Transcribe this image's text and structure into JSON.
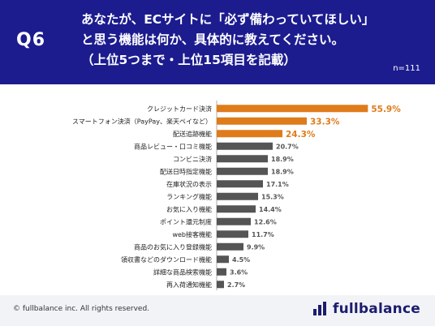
{
  "header": {
    "question_label": "Q6",
    "question_lines": [
      "あなたが、ECサイトに「必ず備わっていてほしい」",
      "と思う機能は何か、具体的に教えてください。",
      "（上位5つまで・上位15項目を記載）"
    ],
    "sample_size": "n=111"
  },
  "chart_data": {
    "type": "bar",
    "orientation": "horizontal",
    "categories": [
      "クレジットカード決済",
      "スマートフォン決済（PayPay、楽天ペイなど）",
      "配送追跡機能",
      "商品レビュー・口コミ機能",
      "コンビニ決済",
      "配送日時指定機能",
      "在庫状況の表示",
      "ランキング機能",
      "お気に入り機能",
      "ポイント還元制度",
      "web接客機能",
      "商品のお気に入り登録機能",
      "領収書などのダウンロード機能",
      "詳細な商品検索機能",
      "再入荷通知機能"
    ],
    "values": [
      55.9,
      33.3,
      24.3,
      20.7,
      18.9,
      18.9,
      17.1,
      15.3,
      14.4,
      12.6,
      11.7,
      9.9,
      4.5,
      3.6,
      2.7
    ],
    "data_labels": [
      "55.9%",
      "33.3%",
      "24.3%",
      "20.7%",
      "18.9%",
      "18.9%",
      "17.1%",
      "15.3%",
      "14.4%",
      "12.6%",
      "11.7%",
      "9.9%",
      "4.5%",
      "3.6%",
      "2.7%"
    ],
    "highlight_top": 3,
    "colors": {
      "highlight": "#e07b1a",
      "default": "#555555"
    },
    "xlim": [
      0,
      60
    ]
  },
  "footer": {
    "copyright": "© fullbalance inc. All rights reserved.",
    "logo_text": "fullbalance"
  }
}
